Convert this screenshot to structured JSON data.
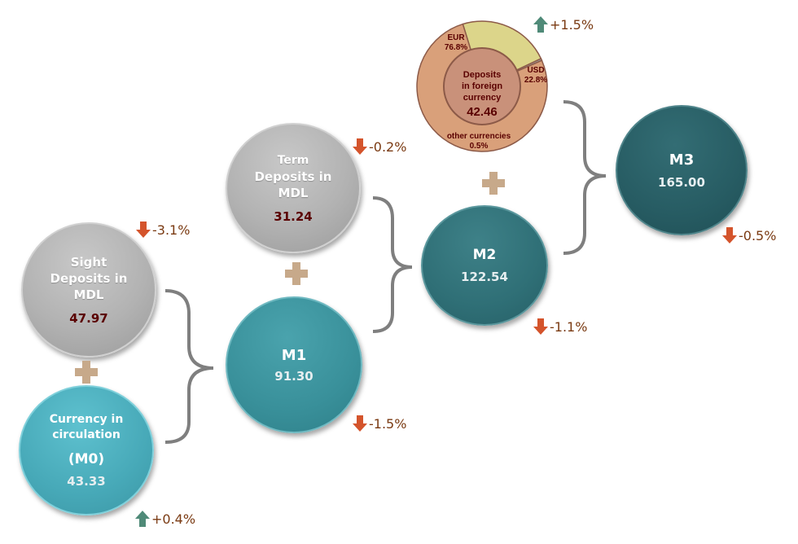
{
  "nodes": {
    "sight": {
      "label_lines": [
        "Sight",
        "Deposits in",
        "MDL"
      ],
      "value": "47.97"
    },
    "currency": {
      "label_lines": [
        "Currency in",
        "circulation"
      ],
      "sub": "(M0)",
      "value": "43.33"
    },
    "term": {
      "label_lines": [
        "Term",
        "Deposits in",
        "MDL"
      ],
      "value": "31.24"
    },
    "m1": {
      "label": "M1",
      "value": "91.30"
    },
    "m2": {
      "label": "M2",
      "value": "122.54"
    },
    "m3": {
      "label": "M3",
      "value": "165.00"
    },
    "foreign": {
      "label_lines": [
        "Deposits",
        "in foreign",
        "currency"
      ],
      "value": "42.46",
      "slices": [
        {
          "name": "EUR",
          "share": 76.8,
          "pct_label": "76.8%",
          "color": "#d9a07a"
        },
        {
          "name": "USD",
          "share": 22.8,
          "pct_label": "22.8%",
          "color": "#dcd58a"
        },
        {
          "name": "other currencies",
          "share": 0.5,
          "pct_label": "0.5%",
          "color": "#a0a0a0"
        }
      ]
    }
  },
  "changes": {
    "sight": {
      "text": "-3.1%",
      "dir": "down"
    },
    "currency": {
      "text": "+0.4%",
      "dir": "up"
    },
    "term": {
      "text": "-0.2%",
      "dir": "down"
    },
    "m1": {
      "text": "-1.5%",
      "dir": "down"
    },
    "m2": {
      "text": "-1.1%",
      "dir": "down"
    },
    "foreign": {
      "text": "+1.5%",
      "dir": "up"
    },
    "m3": {
      "text": "-0.5%",
      "dir": "down"
    }
  },
  "colors": {
    "up_arrow": "#4f8a78",
    "down_arrow": "#d4542c",
    "plus": "#c7a98a",
    "bracket": "#7f7f7f",
    "change_text": "#7a3a12"
  }
}
